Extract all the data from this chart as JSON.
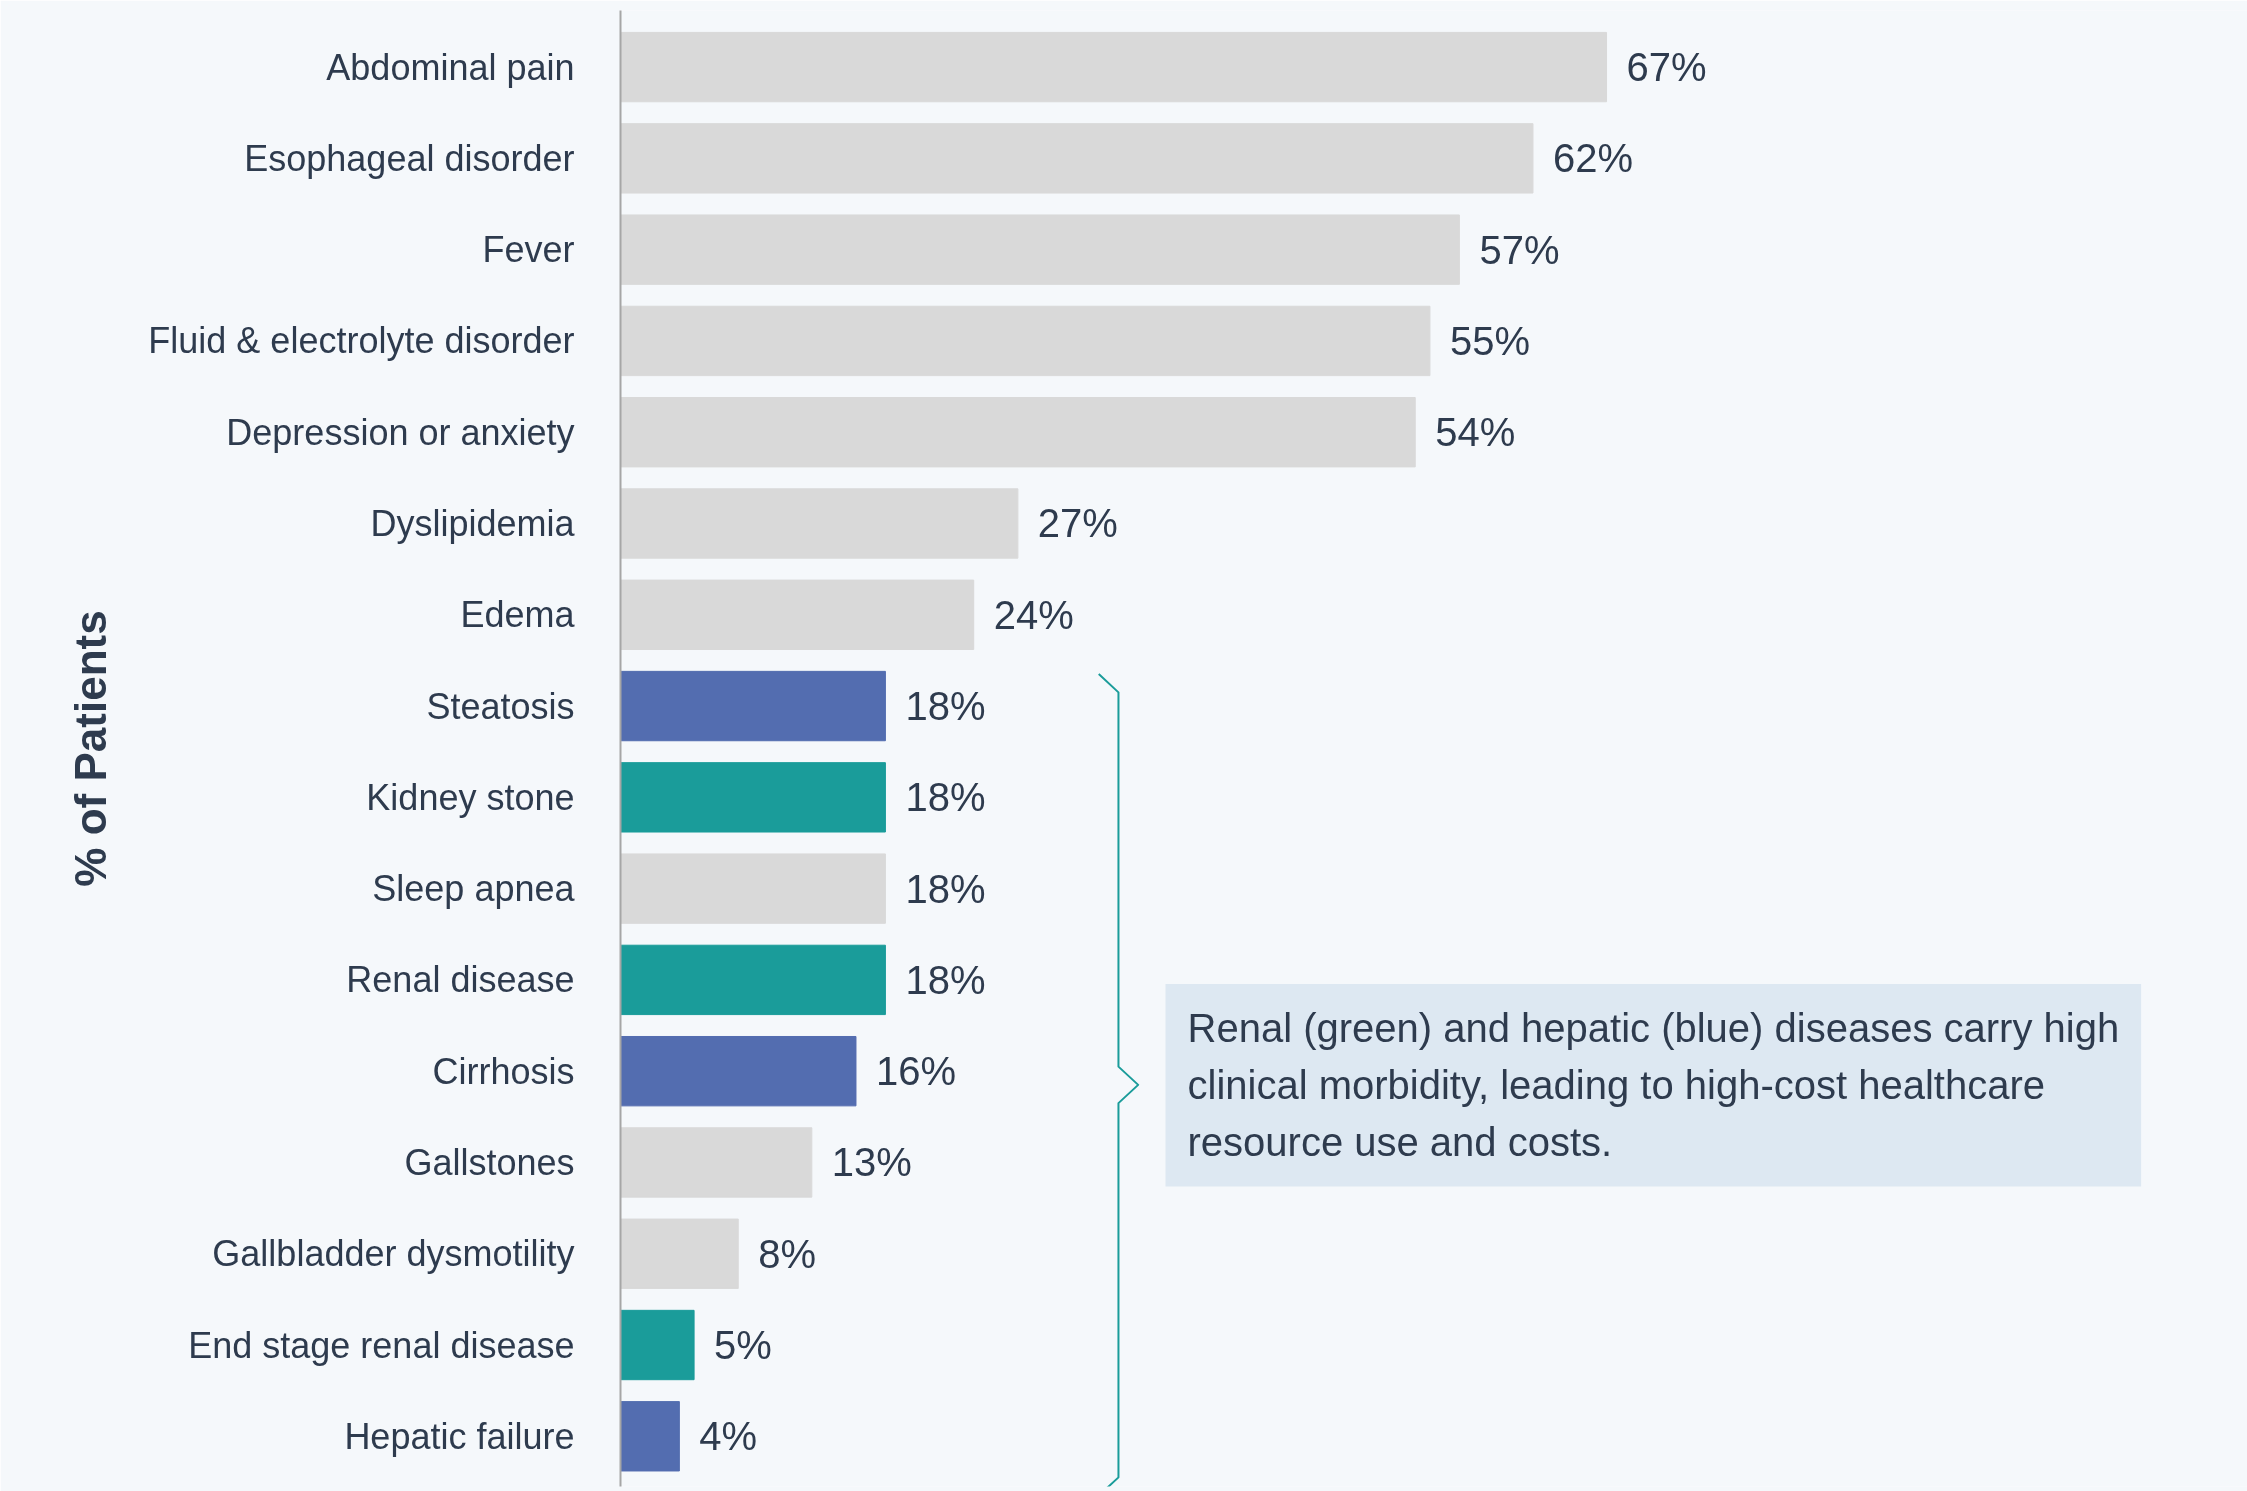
{
  "chart_data": {
    "type": "bar",
    "orientation": "horizontal",
    "ylabel": "% of Patients",
    "categories": [
      "Abdominal pain",
      "Esophageal disorder",
      "Fever",
      "Fluid & electrolyte disorder",
      "Depression or anxiety",
      "Dyslipidemia",
      "Edema",
      "Steatosis",
      "Kidney stone",
      "Sleep apnea",
      "Renal disease",
      "Cirrhosis",
      "Gallstones",
      "Gallbladder dysmotility",
      "End stage renal disease",
      "Hepatic failure"
    ],
    "values": [
      67,
      62,
      57,
      55,
      54,
      27,
      24,
      18,
      18,
      18,
      18,
      16,
      13,
      8,
      5,
      4
    ],
    "value_labels": [
      "67%",
      "62%",
      "57%",
      "55%",
      "54%",
      "27%",
      "24%",
      "18%",
      "18%",
      "18%",
      "18%",
      "16%",
      "13%",
      "8%",
      "5%",
      "4%"
    ],
    "colors": [
      "#d9d9d9",
      "#d9d9d9",
      "#d9d9d9",
      "#d9d9d9",
      "#d9d9d9",
      "#d9d9d9",
      "#d9d9d9",
      "#536db0",
      "#1a9c9a",
      "#d9d9d9",
      "#1a9c9a",
      "#536db0",
      "#d9d9d9",
      "#d9d9d9",
      "#1a9c9a",
      "#536db0"
    ],
    "annotations": [
      "Renal (green) and hepatic (blue) diseases carry high clinical morbidity, leading to high-cost healthcare resource use and costs."
    ]
  }
}
